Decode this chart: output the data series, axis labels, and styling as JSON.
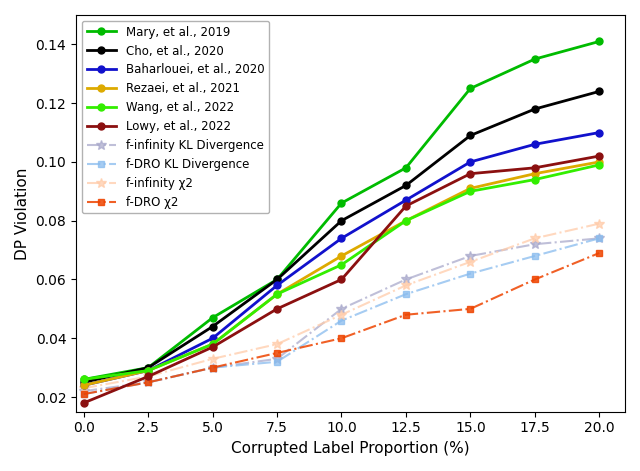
{
  "x": [
    0.0,
    2.5,
    5.0,
    7.5,
    10.0,
    12.5,
    15.0,
    17.5,
    20.0
  ],
  "series": [
    {
      "label": "Mary, et al., 2019",
      "y": [
        0.026,
        0.03,
        0.047,
        0.06,
        0.086,
        0.098,
        0.125,
        0.135,
        0.141
      ],
      "color": "#00BB00",
      "marker": "o",
      "linestyle": "-",
      "linewidth": 2.0,
      "markersize": 5,
      "alpha": 1.0,
      "zorder": 5
    },
    {
      "label": "Cho, et al., 2020",
      "y": [
        0.025,
        0.03,
        0.044,
        0.06,
        0.08,
        0.092,
        0.109,
        0.118,
        0.124
      ],
      "color": "#000000",
      "marker": "o",
      "linestyle": "-",
      "linewidth": 2.0,
      "markersize": 5,
      "alpha": 1.0,
      "zorder": 5
    },
    {
      "label": "Baharlouei, et al., 2020",
      "y": [
        0.024,
        0.029,
        0.04,
        0.058,
        0.074,
        0.087,
        0.1,
        0.106,
        0.11
      ],
      "color": "#1111CC",
      "marker": "o",
      "linestyle": "-",
      "linewidth": 2.0,
      "markersize": 5,
      "alpha": 1.0,
      "zorder": 5
    },
    {
      "label": "Rezaei, et al., 2021",
      "y": [
        0.024,
        0.029,
        0.038,
        0.055,
        0.068,
        0.08,
        0.091,
        0.096,
        0.1
      ],
      "color": "#DDAA00",
      "marker": "o",
      "linestyle": "-",
      "linewidth": 2.0,
      "markersize": 5,
      "alpha": 1.0,
      "zorder": 5
    },
    {
      "label": "Wang, et al., 2022",
      "y": [
        0.026,
        0.029,
        0.038,
        0.055,
        0.065,
        0.08,
        0.09,
        0.094,
        0.099
      ],
      "color": "#33EE00",
      "marker": "o",
      "linestyle": "-",
      "linewidth": 2.0,
      "markersize": 5,
      "alpha": 1.0,
      "zorder": 5
    },
    {
      "label": "Lowy, et al., 2022",
      "y": [
        0.018,
        0.027,
        0.037,
        0.05,
        0.06,
        0.085,
        0.096,
        0.098,
        0.102
      ],
      "color": "#8B1010",
      "marker": "o",
      "linestyle": "-",
      "linewidth": 2.0,
      "markersize": 5,
      "alpha": 1.0,
      "zorder": 5
    },
    {
      "label": "f-infinity KL Divergence",
      "y": [
        0.022,
        0.025,
        0.03,
        0.033,
        0.05,
        0.06,
        0.068,
        0.072,
        0.074
      ],
      "color": "#AAAACC",
      "marker": "*",
      "linestyle": "-.",
      "linewidth": 1.5,
      "markersize": 7,
      "alpha": 0.75,
      "zorder": 3
    },
    {
      "label": "f-DRO KL Divergence",
      "y": [
        0.021,
        0.025,
        0.03,
        0.032,
        0.046,
        0.055,
        0.062,
        0.068,
        0.074
      ],
      "color": "#88BBEE",
      "marker": "s",
      "linestyle": "-.",
      "linewidth": 1.5,
      "markersize": 5,
      "alpha": 0.75,
      "zorder": 3
    },
    {
      "label": "f-infinity χ2",
      "y": [
        0.023,
        0.027,
        0.033,
        0.038,
        0.048,
        0.058,
        0.066,
        0.074,
        0.079
      ],
      "color": "#FFCCAA",
      "marker": "*",
      "linestyle": "-.",
      "linewidth": 1.5,
      "markersize": 7,
      "alpha": 0.75,
      "zorder": 3
    },
    {
      "label": "f-DRO χ2",
      "y": [
        0.021,
        0.025,
        0.03,
        0.035,
        0.04,
        0.048,
        0.05,
        0.06,
        0.069
      ],
      "color": "#EE4400",
      "marker": "s",
      "linestyle": "-.",
      "linewidth": 1.5,
      "markersize": 5,
      "alpha": 0.85,
      "zorder": 3
    }
  ],
  "xlabel": "Corrupted Label Proportion (%)",
  "ylabel": "DP Violation",
  "xlim": [
    -0.3,
    21.0
  ],
  "ylim": [
    0.015,
    0.15
  ],
  "xticks": [
    0.0,
    2.5,
    5.0,
    7.5,
    10.0,
    12.5,
    15.0,
    17.5,
    20.0
  ],
  "yticks": [
    0.02,
    0.04,
    0.06,
    0.08,
    0.1,
    0.12,
    0.14
  ],
  "figsize": [
    6.4,
    4.71
  ],
  "dpi": 100
}
